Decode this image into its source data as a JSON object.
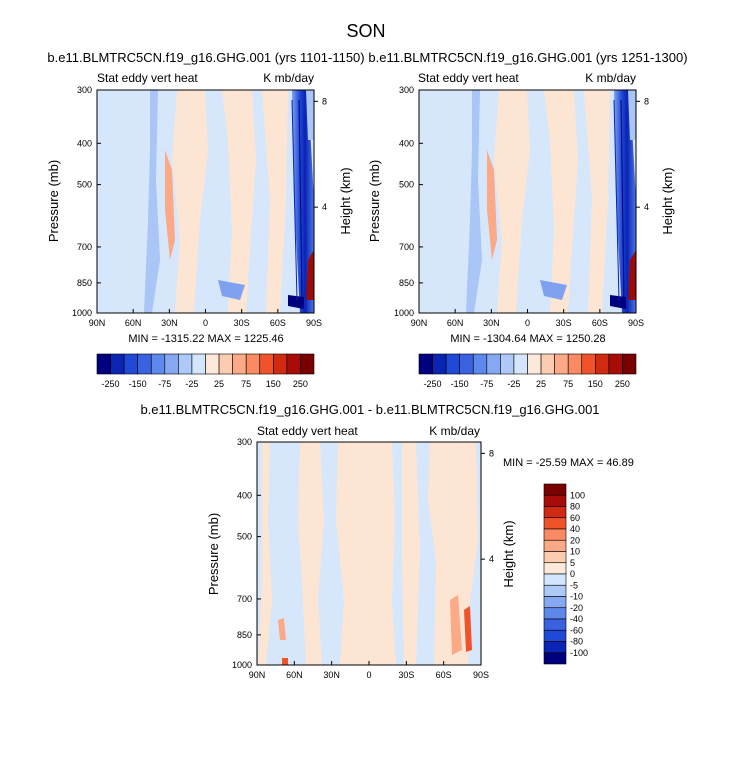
{
  "figure": {
    "title": "SON",
    "diff_minmax": "MIN = -25.59  MAX = 46.89"
  },
  "colors": {
    "neg": [
      "#00007f",
      "#0a24b4",
      "#1f49d6",
      "#4d78e8",
      "#7ea2f0",
      "#a9c6f7",
      "#d4e6fd"
    ],
    "pos": [
      "#fde9d9",
      "#fcccb0",
      "#fba987",
      "#f97e57",
      "#f0532a",
      "#d12a12",
      "#9b0a06",
      "#7a0000"
    ],
    "bg_light_blue": "#d6e7fc",
    "bg_light_orange": "#fde5d3"
  },
  "chart_data": [
    {
      "type": "heatmap",
      "title": "b.e11.BLMTRC5CN.f19_g16.GHG.001 (yrs 1101-1150)",
      "left_label": "Stat eddy vert heat",
      "right_label": "K mb/day",
      "ylabel": "Pressure (mb)",
      "ylabel_right": "Height (km)",
      "x_ticks": [
        "90N",
        "60N",
        "30N",
        "0",
        "30S",
        "60S",
        "90S"
      ],
      "y_ticks": [
        "300",
        "400",
        "500",
        "700",
        "850",
        "1000"
      ],
      "y_ticks_right": [
        "8",
        "4"
      ],
      "minmax": "MIN = -1315.22  MAX = 1225.46",
      "colorbar_levels": [
        "-250",
        "-150",
        "-75",
        "-25",
        "25",
        "75",
        "150",
        "250"
      ]
    },
    {
      "type": "heatmap",
      "title": "b.e11.BLMTRC5CN.f19_g16.GHG.001 (yrs 1251-1300)",
      "left_label": "Stat eddy vert heat",
      "right_label": "K mb/day",
      "ylabel": "Pressure (mb)",
      "ylabel_right": "Height (km)",
      "x_ticks": [
        "90N",
        "60N",
        "30N",
        "0",
        "30S",
        "60S",
        "90S"
      ],
      "y_ticks": [
        "300",
        "400",
        "500",
        "700",
        "850",
        "1000"
      ],
      "y_ticks_right": [
        "8",
        "4"
      ],
      "minmax": "MIN = -1304.64  MAX = 1250.28",
      "colorbar_levels": [
        "-250",
        "-150",
        "-75",
        "-25",
        "25",
        "75",
        "150",
        "250"
      ]
    },
    {
      "type": "heatmap",
      "title": "b.e11.BLMTRC5CN.f19_g16.GHG.001 - b.e11.BLMTRC5CN.f19_g16.GHG.001",
      "left_label": "Stat eddy vert heat",
      "right_label": "K mb/day",
      "ylabel": "Pressure (mb)",
      "ylabel_right": "Height (km)",
      "x_ticks": [
        "90N",
        "60N",
        "30N",
        "0",
        "30S",
        "60S",
        "90S"
      ],
      "y_ticks": [
        "300",
        "400",
        "500",
        "700",
        "850",
        "1000"
      ],
      "y_ticks_right": [
        "8",
        "4"
      ],
      "colorbar_levels": [
        "100",
        "80",
        "60",
        "40",
        "20",
        "10",
        "5",
        "0",
        "-5",
        "-10",
        "-20",
        "-40",
        "-60",
        "-80",
        "-100"
      ]
    }
  ]
}
